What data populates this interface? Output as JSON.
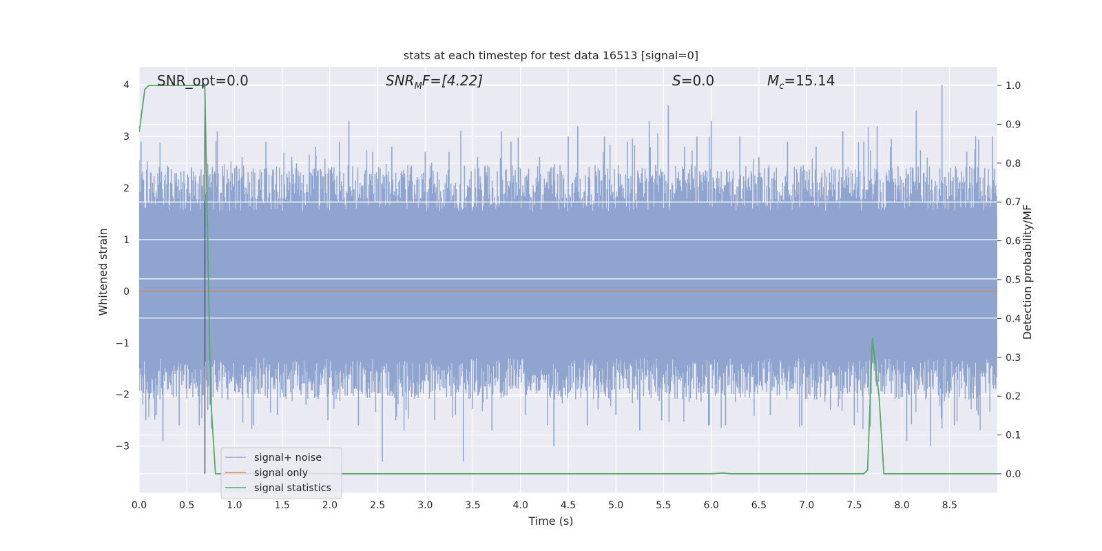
{
  "chart_data": {
    "type": "line",
    "title": "stats at each timestep for test data 16513 [signal=0]",
    "xlabel": "Time (s)",
    "ylabel": "Whitened strain",
    "ylabel_right": "Detection probability/MF",
    "xlim": [
      0.0,
      9.0
    ],
    "ylim": [
      -3.9,
      4.35
    ],
    "ylim_right": [
      -0.048,
      1.048
    ],
    "x_ticks": [
      "0.0",
      "0.5",
      "1.0",
      "1.5",
      "2.0",
      "2.5",
      "3.0",
      "3.5",
      "4.0",
      "4.5",
      "5.0",
      "5.5",
      "6.0",
      "6.5",
      "7.0",
      "7.5",
      "8.0",
      "8.5"
    ],
    "x_tick_values": [
      0.0,
      0.5,
      1.0,
      1.5,
      2.0,
      2.5,
      3.0,
      3.5,
      4.0,
      4.5,
      5.0,
      5.5,
      6.0,
      6.5,
      7.0,
      7.5,
      8.0,
      8.5
    ],
    "y_ticks": [
      "−3",
      "−2",
      "−1",
      "0",
      "1",
      "2",
      "3",
      "4"
    ],
    "y_tick_values": [
      -3,
      -2,
      -1,
      0,
      1,
      2,
      3,
      4
    ],
    "y_ticks_right": [
      "0.0",
      "0.1",
      "0.2",
      "0.3",
      "0.4",
      "0.5",
      "0.6",
      "0.7",
      "0.8",
      "0.9",
      "1.0"
    ],
    "y_tick_values_right": [
      0.0,
      0.1,
      0.2,
      0.3,
      0.4,
      0.5,
      0.6,
      0.7,
      0.8,
      0.9,
      1.0
    ],
    "grid": true,
    "legend_position": "lower-left",
    "annotations": {
      "snr_opt": "SNR_opt=0.0",
      "snr_mf_main": "SNR",
      "snr_mf_sub": "M",
      "snr_mf_rest": "F=[4.22]",
      "s_var": "S",
      "s_rest": "=0.0",
      "mc_main": "M",
      "mc_sub": "c",
      "mc_rest": "=15.14"
    },
    "vline_x": 0.69,
    "series": [
      {
        "name": "signal+ noise",
        "color": "#8fa5cf",
        "axis": "left",
        "description_of_shape": "dense noise band roughly between -1.3 and 1.7 with spikes",
        "spikes": [
          {
            "x": 0.02,
            "y": 2.9
          },
          {
            "x": 0.07,
            "y": -2.5
          },
          {
            "x": 0.12,
            "y": 2.3
          },
          {
            "x": 0.18,
            "y": -2.4
          },
          {
            "x": 0.25,
            "y": -2.9
          },
          {
            "x": 0.33,
            "y": 2.1
          },
          {
            "x": 0.42,
            "y": -2.6
          },
          {
            "x": 0.55,
            "y": 2.4
          },
          {
            "x": 0.63,
            "y": -2.6
          },
          {
            "x": 0.72,
            "y": -2.3
          },
          {
            "x": 0.82,
            "y": 3.1
          },
          {
            "x": 0.93,
            "y": -2.1
          },
          {
            "x": 1.08,
            "y": 2.6
          },
          {
            "x": 1.2,
            "y": -2.6
          },
          {
            "x": 1.33,
            "y": 2.9
          },
          {
            "x": 1.45,
            "y": -2.4
          },
          {
            "x": 1.6,
            "y": 2.6
          },
          {
            "x": 1.75,
            "y": -2.2
          },
          {
            "x": 1.85,
            "y": 2.8
          },
          {
            "x": 1.98,
            "y": -2.5
          },
          {
            "x": 2.1,
            "y": 2.9
          },
          {
            "x": 2.2,
            "y": 3.3
          },
          {
            "x": 2.3,
            "y": -2.6
          },
          {
            "x": 2.45,
            "y": 2.7
          },
          {
            "x": 2.55,
            "y": -3.3
          },
          {
            "x": 2.65,
            "y": 2.8
          },
          {
            "x": 2.8,
            "y": -2.3
          },
          {
            "x": 3.0,
            "y": 2.7
          },
          {
            "x": 3.1,
            "y": -2.5
          },
          {
            "x": 3.25,
            "y": 2.7
          },
          {
            "x": 3.4,
            "y": -3.3
          },
          {
            "x": 3.55,
            "y": 2.6
          },
          {
            "x": 3.7,
            "y": -2.7
          },
          {
            "x": 3.8,
            "y": 3.1
          },
          {
            "x": 3.9,
            "y": 2.9
          },
          {
            "x": 4.05,
            "y": -2.4
          },
          {
            "x": 4.2,
            "y": 2.6
          },
          {
            "x": 4.35,
            "y": -3.0
          },
          {
            "x": 4.5,
            "y": 3.0
          },
          {
            "x": 4.6,
            "y": 3.2
          },
          {
            "x": 4.7,
            "y": -2.6
          },
          {
            "x": 4.88,
            "y": 3.0
          },
          {
            "x": 5.0,
            "y": -2.4
          },
          {
            "x": 5.12,
            "y": 2.9
          },
          {
            "x": 5.25,
            "y": -2.7
          },
          {
            "x": 5.35,
            "y": 3.3
          },
          {
            "x": 5.48,
            "y": -2.5
          },
          {
            "x": 5.55,
            "y": 3.6
          },
          {
            "x": 5.72,
            "y": 2.8
          },
          {
            "x": 5.85,
            "y": 3.0
          },
          {
            "x": 5.98,
            "y": -2.6
          },
          {
            "x": 6.0,
            "y": 3.3
          },
          {
            "x": 6.15,
            "y": -2.6
          },
          {
            "x": 6.3,
            "y": 3.0
          },
          {
            "x": 6.5,
            "y": 2.6
          },
          {
            "x": 6.62,
            "y": -2.4
          },
          {
            "x": 6.8,
            "y": 2.9
          },
          {
            "x": 6.95,
            "y": -2.6
          },
          {
            "x": 7.1,
            "y": 2.8
          },
          {
            "x": 7.25,
            "y": -2.3
          },
          {
            "x": 7.38,
            "y": 3.1
          },
          {
            "x": 7.5,
            "y": -2.6
          },
          {
            "x": 7.6,
            "y": 2.9
          },
          {
            "x": 7.74,
            "y": 3.2
          },
          {
            "x": 7.88,
            "y": 2.8
          },
          {
            "x": 8.05,
            "y": -2.9
          },
          {
            "x": 8.15,
            "y": 3.5
          },
          {
            "x": 8.3,
            "y": -3.0
          },
          {
            "x": 8.42,
            "y": 4.0
          },
          {
            "x": 8.55,
            "y": -2.6
          },
          {
            "x": 8.68,
            "y": 2.7
          },
          {
            "x": 8.8,
            "y": -2.4
          },
          {
            "x": 8.95,
            "y": 3.0
          }
        ]
      },
      {
        "name": "signal only",
        "color": "#dd8452",
        "axis": "left",
        "x": [
          0.0,
          9.0
        ],
        "y": [
          0.0,
          0.0
        ]
      },
      {
        "name": "signal statistics",
        "color": "#55a868",
        "axis": "right",
        "x": [
          0.0,
          0.06,
          0.1,
          0.2,
          0.3,
          0.4,
          0.5,
          0.6,
          0.68,
          0.69,
          0.75,
          0.8,
          0.9,
          1.0,
          6.0,
          6.12,
          6.2,
          7.6,
          7.64,
          7.69,
          7.76,
          7.81,
          7.9,
          9.0
        ],
        "y": [
          0.88,
          0.99,
          1.0,
          1.0,
          1.0,
          1.0,
          1.0,
          1.0,
          1.0,
          0.99,
          0.2,
          0.0,
          0.0,
          0.0,
          0.0,
          0.002,
          0.0,
          0.0,
          0.01,
          0.35,
          0.2,
          0.0,
          0.0,
          0.0
        ]
      }
    ]
  }
}
